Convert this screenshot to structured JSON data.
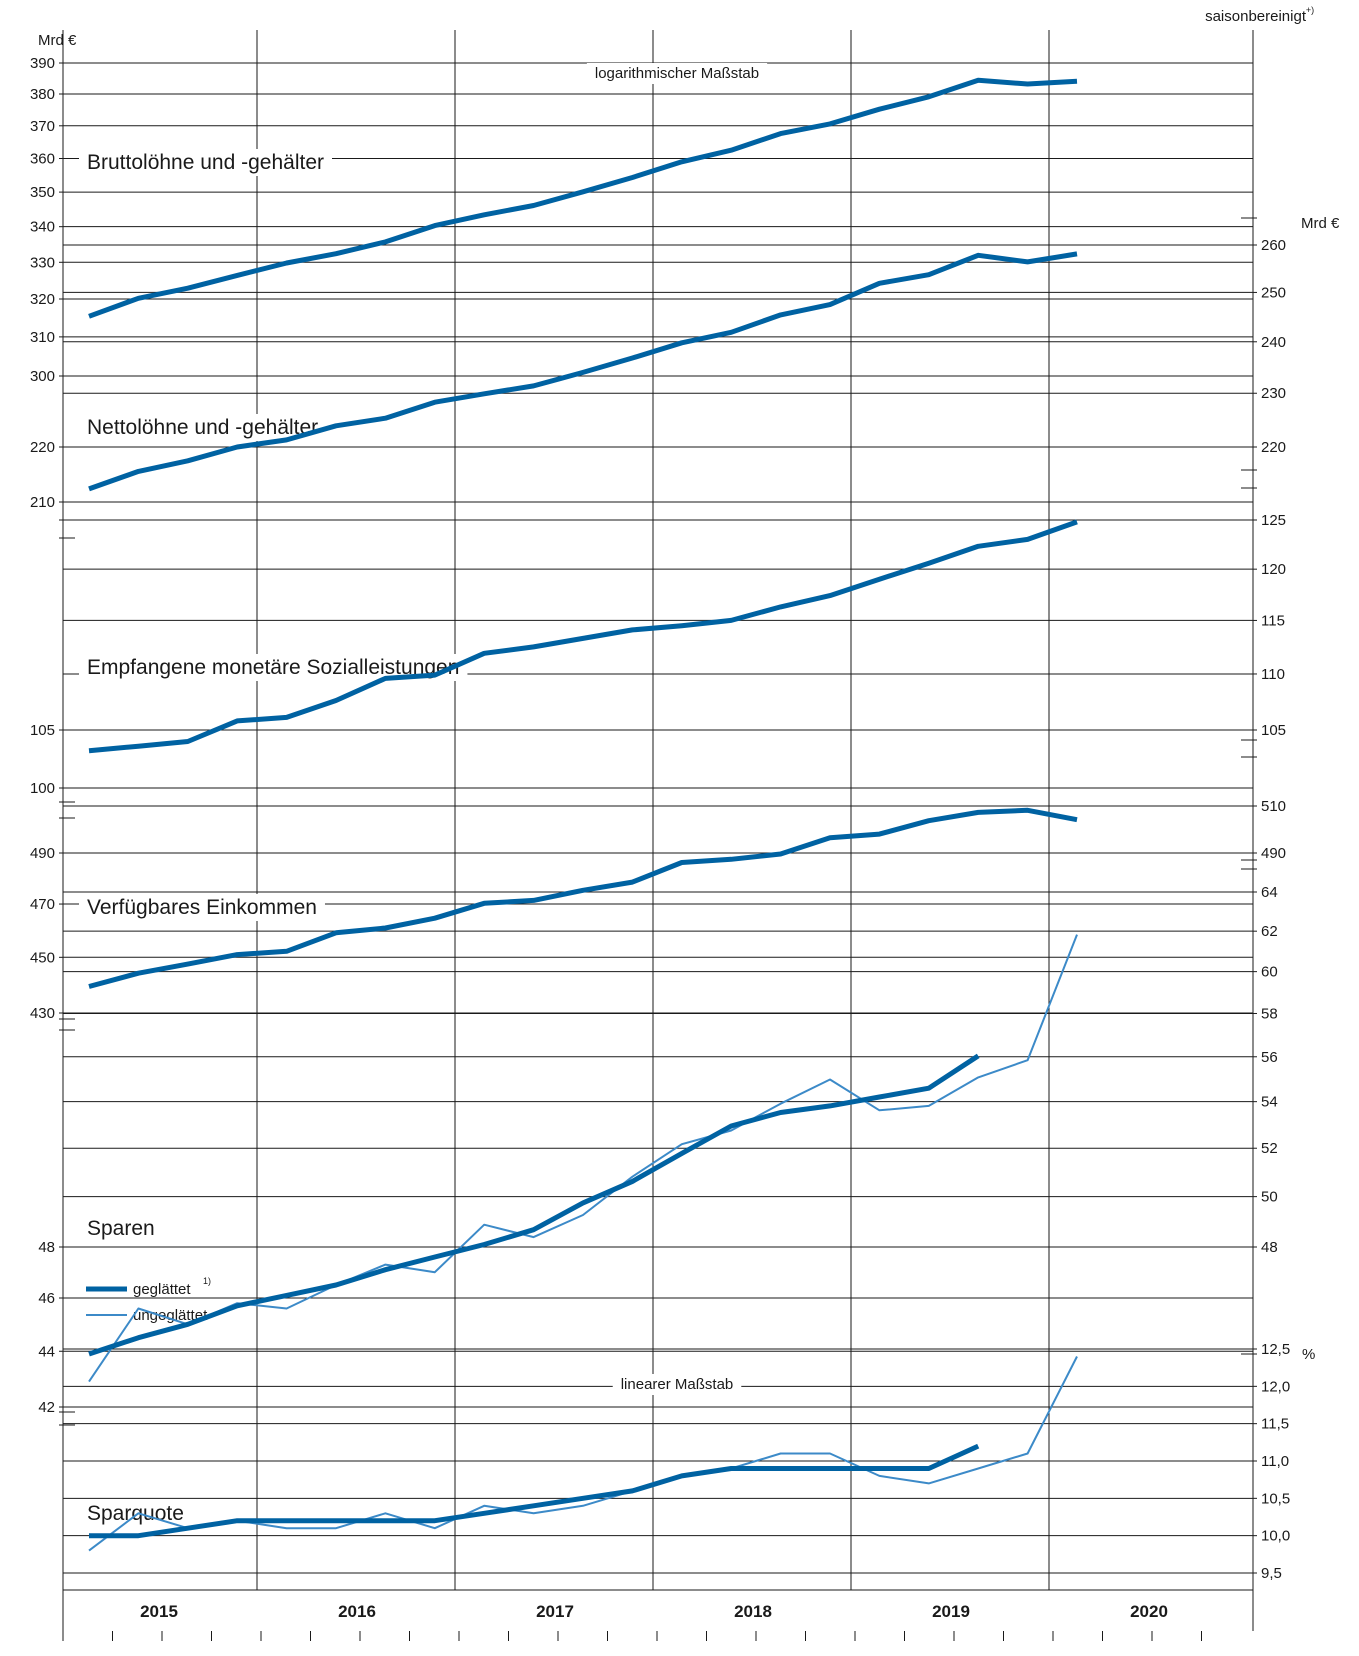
{
  "header": {
    "note": "saisonbereinigt",
    "note_sup": "+)",
    "left_unit": "Mrd €",
    "right_unit": "Mrd €",
    "log_scale_label": "logarithmischer Maßstab",
    "linear_scale_label": "linearer Maßstab",
    "percent_unit": "%"
  },
  "legend": {
    "smoothed": "geglättet",
    "smoothed_sup": "1)",
    "raw": "ungeglättet"
  },
  "colors": {
    "dark": "#0062A2",
    "light": "#3C8AC8",
    "grid": "#1a1a1a"
  },
  "chart_data": [
    {
      "type": "line",
      "title": "Bruttolöhne und -gehälter",
      "unit": "Mrd €",
      "scale": "log",
      "axis": "left",
      "x": [
        "2015 Q1",
        "2015 Q2",
        "2015 Q3",
        "2015 Q4",
        "2016 Q1",
        "2016 Q2",
        "2016 Q3",
        "2016 Q4",
        "2017 Q1",
        "2017 Q2",
        "2017 Q3",
        "2017 Q4",
        "2018 Q1",
        "2018 Q2",
        "2018 Q3",
        "2018 Q4",
        "2019 Q1",
        "2019 Q2",
        "2019 Q3",
        "2019 Q4",
        "2020 Q1"
      ],
      "values": [
        315.4,
        320.2,
        322.9,
        326.4,
        329.8,
        332.4,
        335.7,
        340.3,
        343.4,
        346.1,
        350.1,
        354.3,
        359.0,
        362.5,
        367.6,
        370.6,
        375.2,
        379.1,
        384.4,
        383.2,
        384.1
      ],
      "yticks": [
        300,
        310,
        320,
        330,
        340,
        350,
        360,
        370,
        380,
        390
      ]
    },
    {
      "type": "line",
      "title": "Nettolöhne und -gehälter",
      "unit": "Mrd €",
      "scale": "log",
      "axis": "left+right",
      "x": [
        "2015 Q1",
        "2015 Q2",
        "2015 Q3",
        "2015 Q4",
        "2016 Q1",
        "2016 Q2",
        "2016 Q3",
        "2016 Q4",
        "2017 Q1",
        "2017 Q2",
        "2017 Q3",
        "2017 Q4",
        "2018 Q1",
        "2018 Q2",
        "2018 Q3",
        "2018 Q4",
        "2019 Q1",
        "2019 Q2",
        "2019 Q3",
        "2019 Q4",
        "2020 Q1"
      ],
      "values": [
        212.5,
        215.6,
        217.5,
        220.0,
        221.3,
        223.9,
        225.3,
        228.3,
        229.9,
        231.4,
        234.0,
        236.8,
        239.8,
        241.9,
        245.4,
        247.5,
        251.9,
        253.7,
        257.8,
        256.4,
        258.1
      ],
      "yticks_left": [
        210,
        220
      ],
      "yticks_right": [
        220,
        230,
        240,
        250,
        260
      ]
    },
    {
      "type": "line",
      "title": "Empfangene monetäre Sozialleistungen",
      "unit": "Mrd €",
      "scale": "log",
      "axis": "left+right",
      "x": [
        "2015 Q1",
        "2015 Q2",
        "2015 Q3",
        "2015 Q4",
        "2016 Q1",
        "2016 Q2",
        "2016 Q3",
        "2016 Q4",
        "2017 Q1",
        "2017 Q2",
        "2017 Q3",
        "2017 Q4",
        "2018 Q1",
        "2018 Q2",
        "2018 Q3",
        "2018 Q4",
        "2019 Q1",
        "2019 Q2",
        "2019 Q3",
        "2019 Q4",
        "2020 Q1"
      ],
      "values": [
        103.2,
        103.6,
        104.0,
        105.8,
        106.1,
        107.6,
        109.6,
        109.9,
        111.9,
        112.5,
        113.3,
        114.1,
        114.5,
        115.0,
        116.3,
        117.4,
        119.0,
        120.6,
        122.3,
        123.0,
        124.8
      ],
      "yticks_left": [
        100,
        105
      ],
      "yticks_right": [
        105,
        110,
        115,
        120,
        125
      ]
    },
    {
      "type": "line",
      "title": "Verfügbares Einkommen",
      "unit": "Mrd €",
      "scale": "log",
      "axis": "left+right",
      "x": [
        "2015 Q1",
        "2015 Q2",
        "2015 Q3",
        "2015 Q4",
        "2016 Q1",
        "2016 Q2",
        "2016 Q3",
        "2016 Q4",
        "2017 Q1",
        "2017 Q2",
        "2017 Q3",
        "2017 Q4",
        "2018 Q1",
        "2018 Q2",
        "2018 Q3",
        "2018 Q4",
        "2019 Q1",
        "2019 Q2",
        "2019 Q3",
        "2019 Q4",
        "2020 Q1"
      ],
      "values": [
        439.4,
        444.2,
        447.5,
        451.0,
        452.2,
        459.1,
        460.9,
        464.6,
        470.3,
        471.4,
        475.3,
        478.5,
        486.2,
        487.5,
        489.6,
        496.1,
        497.6,
        503.1,
        506.5,
        507.4,
        503.5
      ],
      "yticks_left": [
        430,
        450,
        470,
        490
      ],
      "yticks_right": [
        490,
        510
      ]
    },
    {
      "type": "line",
      "title": "Sparen",
      "unit": "Mrd €",
      "scale": "log",
      "axis": "left+right",
      "x": [
        "2015 Q1",
        "2015 Q2",
        "2015 Q3",
        "2015 Q4",
        "2016 Q1",
        "2016 Q2",
        "2016 Q3",
        "2016 Q4",
        "2017 Q1",
        "2017 Q2",
        "2017 Q3",
        "2017 Q4",
        "2018 Q1",
        "2018 Q2",
        "2018 Q3",
        "2018 Q4",
        "2019 Q1",
        "2019 Q2",
        "2019 Q3",
        "2019 Q4",
        "2020 Q1"
      ],
      "series": [
        {
          "name": "geglättet",
          "values": [
            43.9,
            44.5,
            45.0,
            45.7,
            46.1,
            46.5,
            47.1,
            47.6,
            48.1,
            48.7,
            49.8,
            50.7,
            51.9,
            53.1,
            53.7,
            54.0,
            54.4,
            54.8,
            56.3,
            null,
            null
          ]
        },
        {
          "name": "ungeglättet",
          "values": [
            42.9,
            45.6,
            45.0,
            45.8,
            45.6,
            46.5,
            47.3,
            47.0,
            48.9,
            48.4,
            49.3,
            50.9,
            52.3,
            52.9,
            54.1,
            55.2,
            53.8,
            54.0,
            55.3,
            56.1,
            62.3
          ]
        }
      ],
      "yticks_left": [
        42,
        44,
        46,
        48
      ],
      "yticks_right": [
        48,
        50,
        52,
        54,
        56,
        58,
        60,
        62,
        64
      ]
    },
    {
      "type": "line",
      "title": "Sparquote",
      "unit": "%",
      "scale": "linear",
      "axis": "right",
      "x": [
        "2015 Q1",
        "2015 Q2",
        "2015 Q3",
        "2015 Q4",
        "2016 Q1",
        "2016 Q2",
        "2016 Q3",
        "2016 Q4",
        "2017 Q1",
        "2017 Q2",
        "2017 Q3",
        "2017 Q4",
        "2018 Q1",
        "2018 Q2",
        "2018 Q3",
        "2018 Q4",
        "2019 Q1",
        "2019 Q2",
        "2019 Q3",
        "2019 Q4",
        "2020 Q1"
      ],
      "series": [
        {
          "name": "geglättet",
          "values": [
            10.0,
            10.0,
            10.1,
            10.2,
            10.2,
            10.2,
            10.2,
            10.2,
            10.3,
            10.4,
            10.5,
            10.6,
            10.8,
            10.9,
            10.9,
            10.9,
            10.9,
            10.9,
            11.2,
            null,
            null
          ]
        },
        {
          "name": "ungeglättet",
          "values": [
            9.8,
            10.3,
            10.1,
            10.2,
            10.1,
            10.1,
            10.3,
            10.1,
            10.4,
            10.3,
            10.4,
            10.6,
            10.8,
            10.9,
            11.1,
            11.1,
            10.8,
            10.7,
            10.9,
            11.1,
            12.4
          ]
        }
      ],
      "yticks_right": [
        "9,5",
        "10,0",
        "10,5",
        "11,0",
        "11,5",
        "12,0",
        "12,5"
      ]
    }
  ],
  "x_axis": {
    "years": [
      "2015",
      "2016",
      "2017",
      "2018",
      "2019",
      "2020"
    ]
  }
}
